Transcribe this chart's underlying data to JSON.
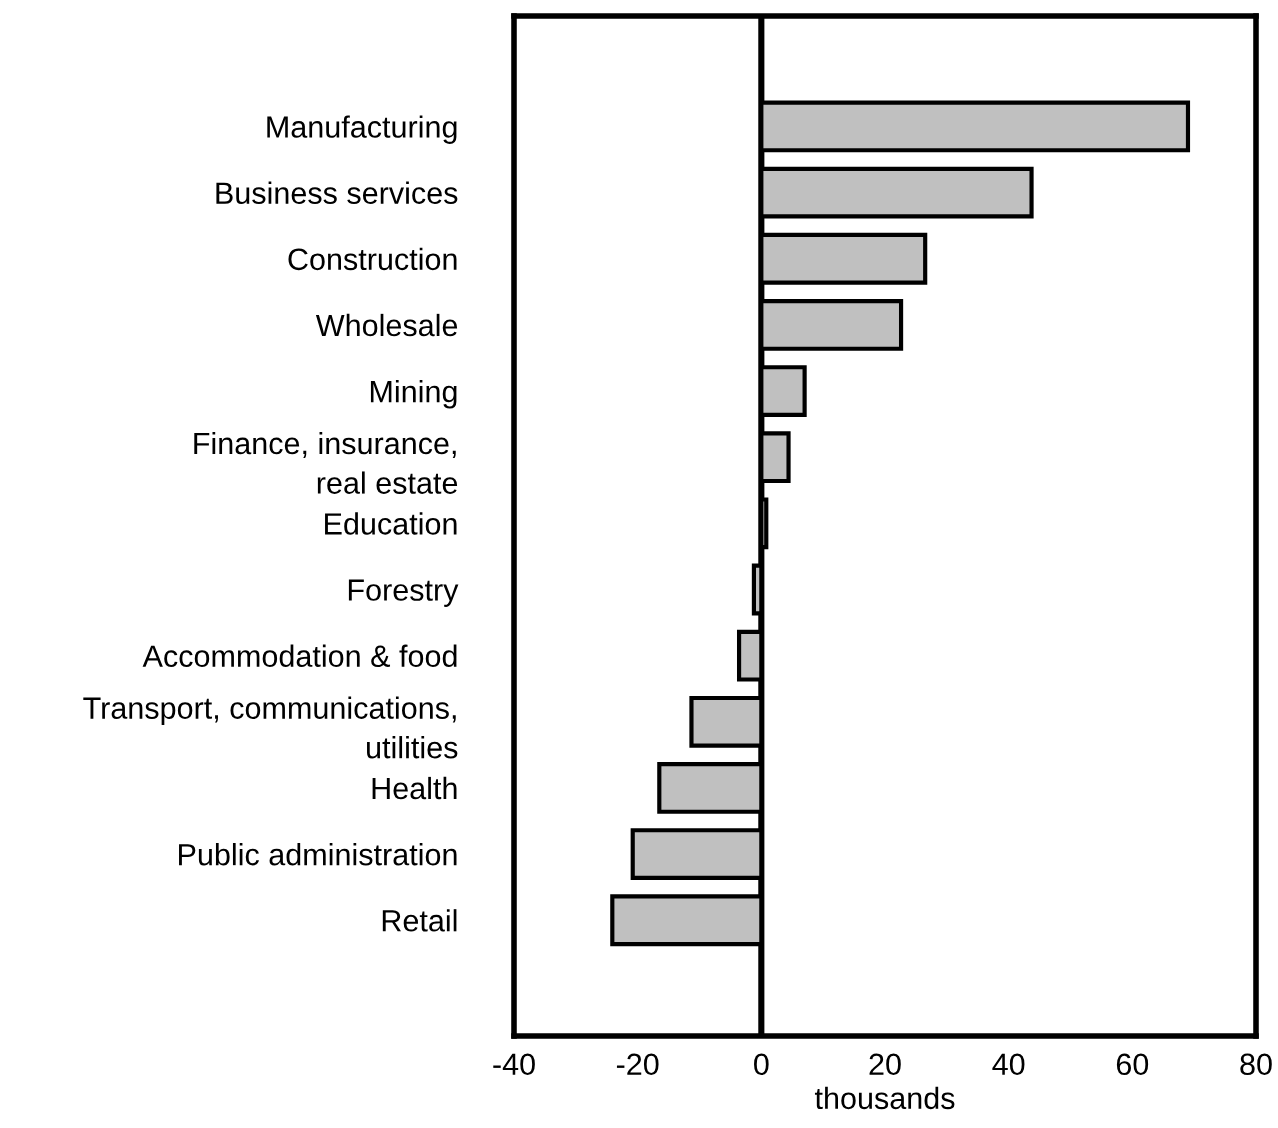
{
  "chart_data": {
    "type": "bar",
    "orientation": "horizontal",
    "xlabel": "thousands",
    "categories": [
      "Manufacturing",
      "Business services",
      "Construction",
      "Wholesale",
      "Mining",
      "Finance, insurance,\nreal estate",
      "Education",
      "Forestry",
      "Accommodation & food",
      "Transport, communications,\nutilities",
      "Health",
      "Public administration",
      "Retail"
    ],
    "series": [
      {
        "color": "#c0c0c0",
        "values": [
          69.0,
          43.7,
          26.5,
          22.6,
          7.0,
          4.4,
          0.8,
          -1.2,
          -3.6,
          -11.3,
          -16.5,
          -20.8,
          -24.1
        ]
      }
    ],
    "xlim": [
      -40,
      80
    ],
    "xticks": [
      -40,
      -20,
      0,
      20,
      40,
      60,
      80
    ],
    "ref_lines": [
      {
        "axis": "x",
        "value": 0,
        "color": "#000000"
      }
    ],
    "grid": false,
    "legend": false
  }
}
